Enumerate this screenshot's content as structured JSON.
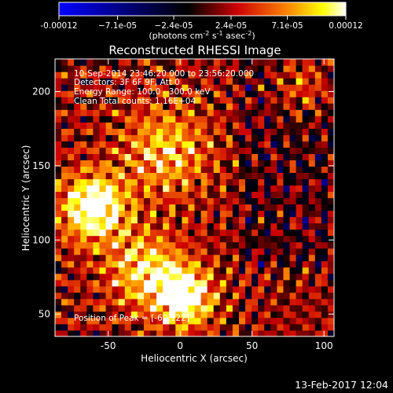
{
  "chart_data": {
    "type": "heatmap",
    "title": "Reconstructed RHESSI Image",
    "xlabel": "Heliocentric X (arcsec)",
    "ylabel": "Heliocentric Y (arcsec)",
    "xlim": [
      -87,
      107
    ],
    "ylim": [
      35,
      222
    ],
    "xticks": [
      "-50",
      "0",
      "50",
      "100"
    ],
    "xtick_values": [
      -50,
      0,
      50,
      100
    ],
    "yticks": [
      "50",
      "100",
      "150",
      "200"
    ],
    "ytick_values": [
      50,
      100,
      150,
      200
    ],
    "colorbar": {
      "label_main": "(photons cm",
      "label_sup1": "-2",
      "label_mid": " s",
      "label_sup2": "-1",
      "label_mid2": " asec",
      "label_sup3": "-2",
      "label_end": ")",
      "ticks": [
        "-0.00012",
        "−7.1e-05",
        "−2.4e-05",
        "2.4e-05",
        "7.1e-05",
        "0.00012"
      ],
      "tick_values": [
        -0.00012,
        -7.1e-05,
        -2.4e-05,
        2.4e-05,
        7.1e-05,
        0.00012
      ],
      "range": [
        -0.00012,
        0.00012
      ]
    },
    "annotations": [
      "10-Sep-2014 23:46:20.000 to 23:56:20.000",
      "Detectors: 3F 6F 9F, Att 0",
      "Energy Range: 100.0 - 300.0 keV",
      "Clean     Total counts: 1.16E+04"
    ],
    "peak_label": "Position of Peak = [-60,122]",
    "peak": {
      "x": -60,
      "y": 122
    },
    "grid": false,
    "colormap": [
      "#0000ff",
      "#000000",
      "#ff0000",
      "#ffff00",
      "#ffffff"
    ]
  },
  "timestamp": "13-Feb-2017 12:04"
}
